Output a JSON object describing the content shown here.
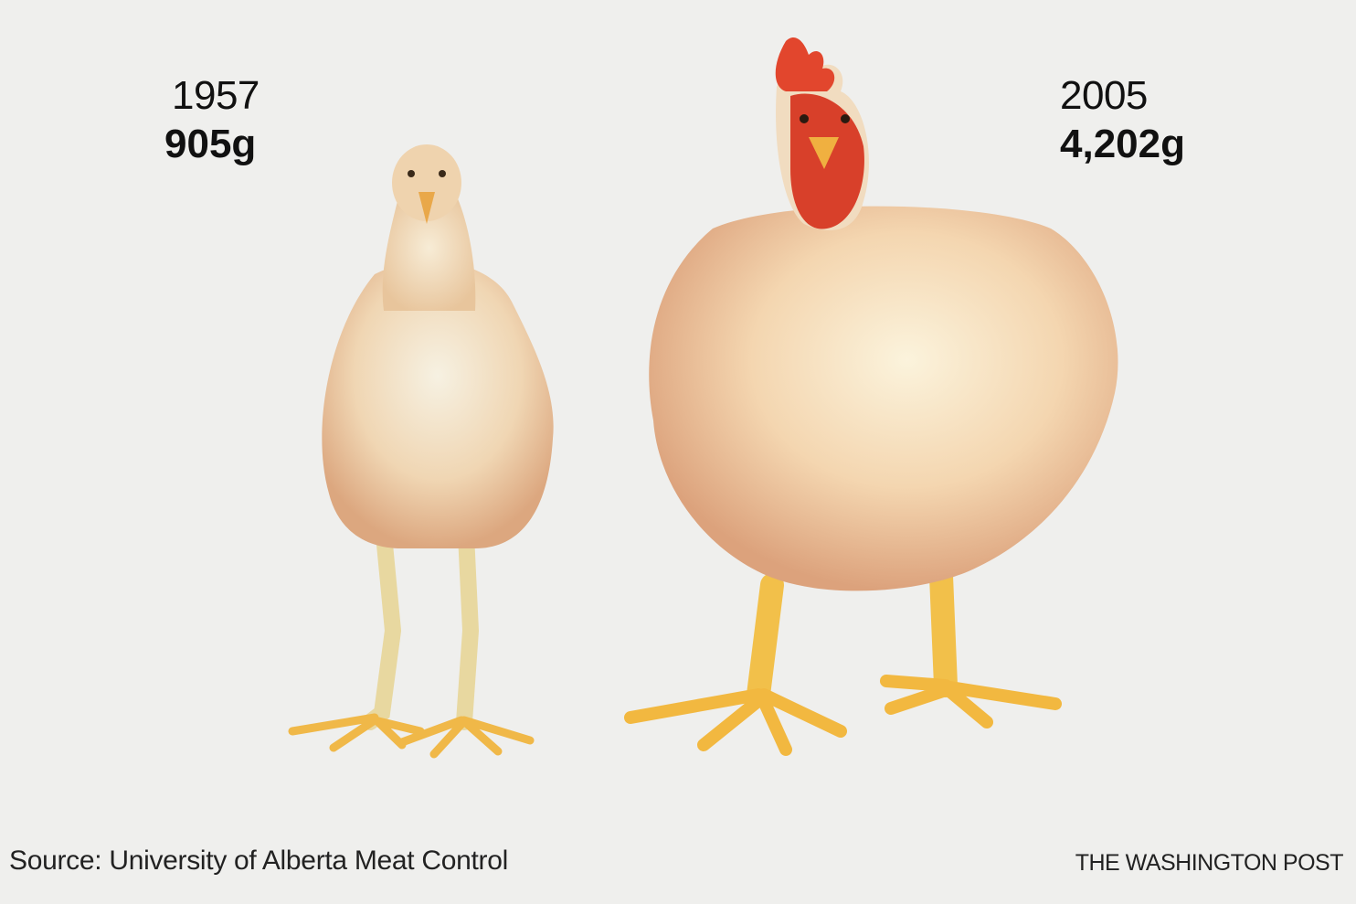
{
  "comparison": {
    "left": {
      "year": "1957",
      "weight": "905g"
    },
    "right": {
      "year": "2005",
      "weight": "4,202g"
    }
  },
  "footer": {
    "source": "Source: University of Alberta Meat Control",
    "credit": "THE WASHINGTON POST"
  },
  "icons": [
    "chicken-1957-illustration",
    "chicken-2005-illustration"
  ],
  "colors": {
    "background": "#efefed",
    "text": "#111111",
    "plumage_light": "#f6e6c8",
    "plumage_shadow": "#e3b98f",
    "comb": "#e2462d",
    "legs": "#f2c04a"
  }
}
